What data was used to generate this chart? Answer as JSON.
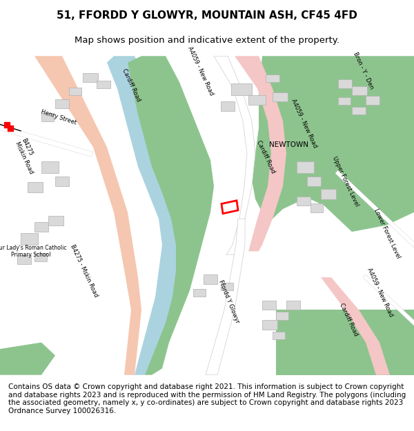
{
  "title_line1": "51, FFORDD Y GLOWYR, MOUNTAIN ASH, CF45 4FD",
  "title_line2": "Map shows position and indicative extent of the property.",
  "footer_text": "Contains OS data © Crown copyright and database right 2021. This information is subject to Crown copyright and database rights 2023 and is reproduced with the permission of HM Land Registry. The polygons (including the associated geometry, namely x, y co-ordinates) are subject to Crown copyright and database rights 2023 Ordnance Survey 100026316.",
  "title_fontsize": 11,
  "subtitle_fontsize": 9.5,
  "footer_fontsize": 7.5,
  "map_bg": "#f2efe9",
  "road_pink": "#f5c6c6",
  "road_outline": "#e8a0a0",
  "water_blue": "#aad3df",
  "green_area": "#8dc48e",
  "building_gray": "#d9d9d9",
  "building_outline": "#b0b0b0",
  "highlight_red": "#ff0000",
  "road_white": "#ffffff",
  "green_strip": "#7db87d"
}
